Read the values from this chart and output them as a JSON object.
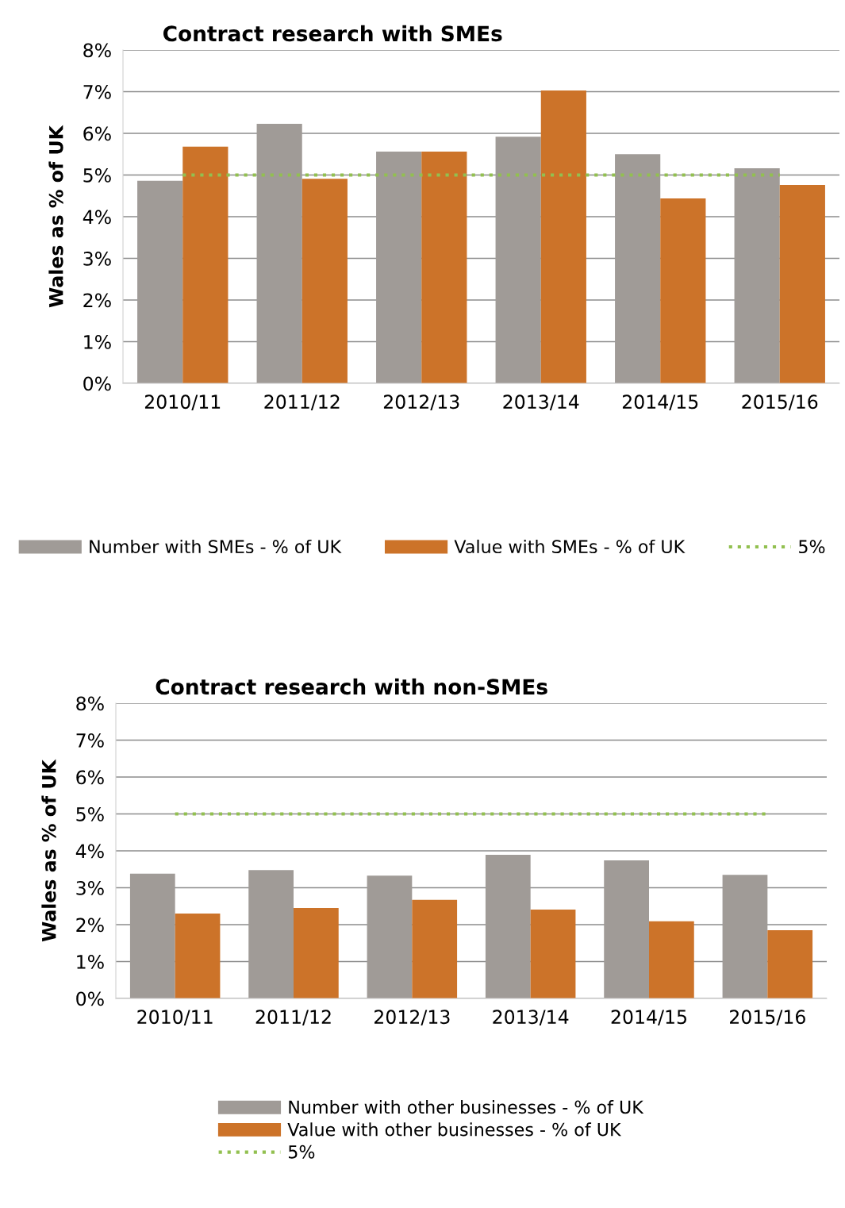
{
  "chart_data": [
    {
      "type": "bar",
      "title": "Contract research with SMEs",
      "ylabel": "Wales as % of UK",
      "categories": [
        "2010/11",
        "2011/12",
        "2012/13",
        "2013/14",
        "2014/15",
        "2015/16"
      ],
      "series": [
        {
          "name": "Number with SMEs - % of UK",
          "color": "#a09b97",
          "values": [
            4.86,
            6.23,
            5.56,
            5.92,
            5.5,
            5.16
          ]
        },
        {
          "name": "Value with SMEs - % of UK",
          "color": "#cc7329",
          "values": [
            5.68,
            4.91,
            5.56,
            7.03,
            4.44,
            4.76
          ]
        },
        {
          "name": "5%",
          "type": "line",
          "color": "#92c050",
          "line_style": "dotted",
          "marker": "none",
          "values": [
            5,
            5,
            5,
            5,
            5,
            5
          ]
        }
      ],
      "ylim": [
        0,
        8
      ],
      "yticks": [
        {
          "value": 0,
          "label": "0%"
        },
        {
          "value": 1,
          "label": "1%"
        },
        {
          "value": 2,
          "label": "2%"
        },
        {
          "value": 3,
          "label": "3%"
        },
        {
          "value": 4,
          "label": "4%"
        },
        {
          "value": 5,
          "label": "5%"
        },
        {
          "value": 6,
          "label": "6%"
        },
        {
          "value": 7,
          "label": "7%"
        },
        {
          "value": 8,
          "label": "8%"
        }
      ],
      "grid": "y",
      "legend": "bottom"
    },
    {
      "type": "bar",
      "title": "Contract research with non-SMEs",
      "ylabel": "Wales as % of UK",
      "categories": [
        "2010/11",
        "2011/12",
        "2012/13",
        "2013/14",
        "2014/15",
        "2015/16"
      ],
      "series": [
        {
          "name": "Number with other businesses - % of UK",
          "color": "#a09b97",
          "values": [
            3.38,
            3.48,
            3.33,
            3.89,
            3.74,
            3.35
          ]
        },
        {
          "name": "Value with other businesses - % of UK",
          "color": "#cc7329",
          "values": [
            2.3,
            2.45,
            2.67,
            2.41,
            2.09,
            1.85
          ]
        },
        {
          "name": "5%",
          "type": "line",
          "color": "#92c050",
          "line_style": "dotted",
          "marker": "none",
          "values": [
            5,
            5,
            5,
            5,
            5,
            5
          ]
        }
      ],
      "ylim": [
        0,
        8
      ],
      "yticks": [
        {
          "value": 0,
          "label": "0%"
        },
        {
          "value": 1,
          "label": "1%"
        },
        {
          "value": 2,
          "label": "2%"
        },
        {
          "value": 3,
          "label": "3%"
        },
        {
          "value": 4,
          "label": "4%"
        },
        {
          "value": 5,
          "label": "5%"
        },
        {
          "value": 6,
          "label": "6%"
        },
        {
          "value": 7,
          "label": "7%"
        },
        {
          "value": 8,
          "label": "8%"
        }
      ],
      "grid": "y",
      "legend": "bottom"
    }
  ]
}
